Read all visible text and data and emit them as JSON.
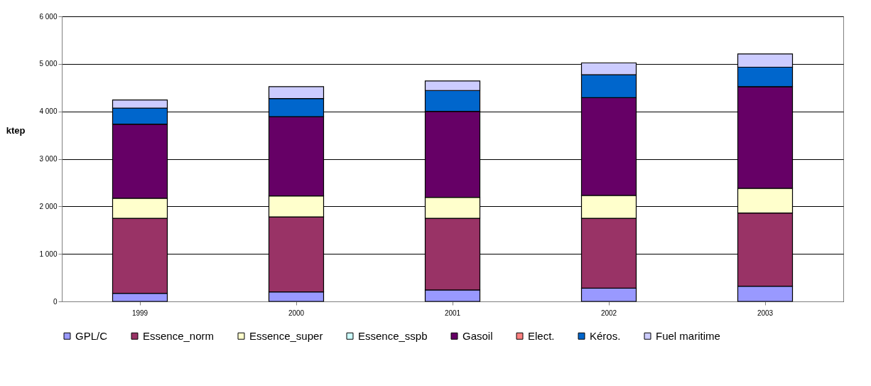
{
  "chart_data": {
    "type": "bar",
    "stacked": true,
    "ylabel": "ktep",
    "categories": [
      "1999",
      "2000",
      "2001",
      "2002",
      "2003"
    ],
    "series": [
      {
        "name": "GPL/C",
        "color": "#9999ff",
        "values": [
          170,
          200,
          240,
          280,
          320
        ]
      },
      {
        "name": "Essence_norm",
        "color": "#993366",
        "values": [
          1580,
          1580,
          1510,
          1470,
          1540
        ]
      },
      {
        "name": "Essence_super",
        "color": "#ffffcc",
        "values": [
          420,
          440,
          440,
          480,
          520
        ]
      },
      {
        "name": "Essence_sspb",
        "color": "#ccffff",
        "values": [
          null,
          null,
          null,
          null,
          null
        ]
      },
      {
        "name": "Gasoil",
        "color": "#660066",
        "values": [
          1560,
          1670,
          1810,
          2060,
          2140
        ]
      },
      {
        "name": "Elect.",
        "color": "#ff8080",
        "values": [
          0,
          0,
          0,
          0,
          0
        ]
      },
      {
        "name": "Kéros.",
        "color": "#0066cc",
        "values": [
          340,
          380,
          440,
          480,
          410
        ]
      },
      {
        "name": "Fuel maritime",
        "color": "#ccccff",
        "values": [
          170,
          250,
          200,
          250,
          280
        ]
      }
    ],
    "ylim": [
      0,
      6000
    ],
    "yticks": [
      0,
      {
        "value": 1000,
        "label": "1 000"
      },
      {
        "value": 2000,
        "label": "2 000"
      },
      {
        "value": 3000,
        "label": "3 000"
      },
      {
        "value": 4000,
        "label": "4 000"
      },
      {
        "value": 5000,
        "label": "5 000"
      },
      {
        "value": 6000,
        "label": "6 000"
      }
    ],
    "grid": "y",
    "legend": "bottom"
  }
}
